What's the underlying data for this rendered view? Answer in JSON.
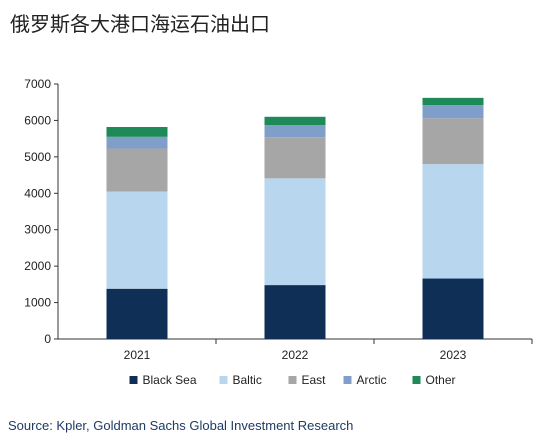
{
  "title": "俄罗斯各大港口海运石油出口",
  "source": "Source: Kpler, Goldman Sachs Global Investment Research",
  "chart_data": {
    "type": "bar",
    "stacked": true,
    "categories": [
      "2021",
      "2022",
      "2023"
    ],
    "series": [
      {
        "name": "Black Sea",
        "color": "#0f2f57",
        "values": [
          1380,
          1480,
          1660
        ]
      },
      {
        "name": "Baltic",
        "color": "#b9d6ef",
        "values": [
          2670,
          2930,
          3140
        ]
      },
      {
        "name": "East",
        "color": "#a6a6a6",
        "values": [
          1180,
          1130,
          1260
        ]
      },
      {
        "name": "Arctic",
        "color": "#7f9fca",
        "values": [
          320,
          330,
          360
        ]
      },
      {
        "name": "Other",
        "color": "#1e8a58",
        "values": [
          270,
          230,
          200
        ]
      }
    ],
    "ylim": [
      0,
      7000
    ],
    "yticks": [
      "0",
      "1000",
      "2000",
      "3000",
      "4000",
      "5000",
      "6000",
      "7000"
    ],
    "grid": false,
    "legend": "bottom"
  }
}
